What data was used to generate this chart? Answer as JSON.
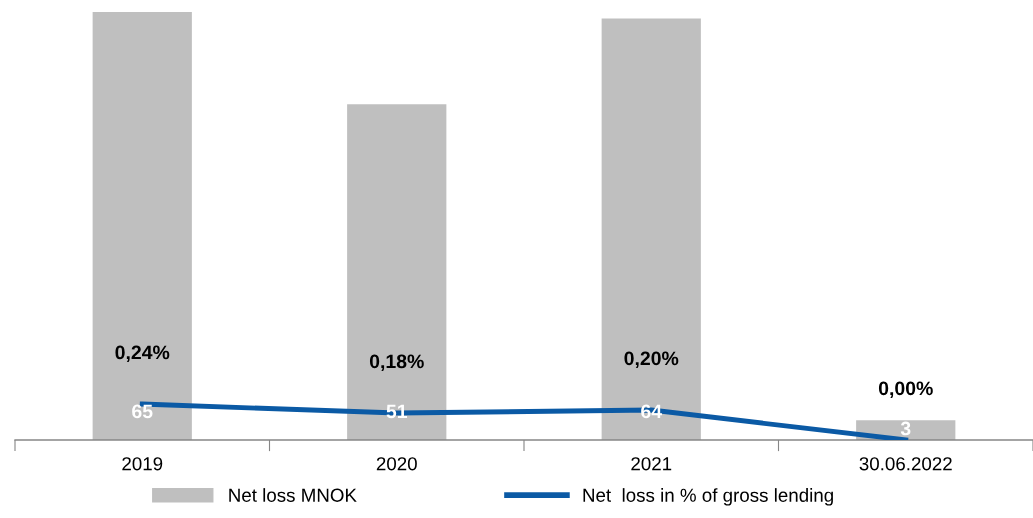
{
  "chart_data": {
    "type": "bar",
    "categories": [
      "2019",
      "2020",
      "2021",
      "30.06.2022"
    ],
    "series": [
      {
        "name": "Net loss MNOK",
        "color": "#bfbfbf",
        "values": [
          65,
          51,
          64,
          3
        ],
        "value_labels": [
          "65",
          "51",
          "64",
          "3"
        ]
      },
      {
        "name": "Net  loss in % of gross lending",
        "type": "line",
        "axis": "y2",
        "color": "#0b5aa5",
        "values": [
          0.24,
          0.18,
          0.2,
          0.0
        ],
        "value_labels": [
          "0,24%",
          "0,18%",
          "0,20%",
          "0,00%"
        ]
      }
    ],
    "ylim": [
      0,
      65.3
    ],
    "y2lim": [
      0,
      2.87
    ],
    "tick_labels": "x",
    "grid": false,
    "legend": "bottom",
    "marker": "none",
    "line_style": "solid"
  }
}
